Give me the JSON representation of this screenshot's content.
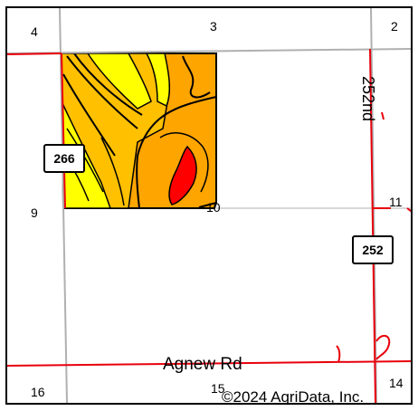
{
  "map": {
    "section_numbers": {
      "s4": "4",
      "s3": "3",
      "s2": "2",
      "s9": "9",
      "s10": "10",
      "s11": "11",
      "s16": "16",
      "s15": "15",
      "s14": "14"
    },
    "road_labels": {
      "vertical_road": "252nd",
      "horizontal_road": "Agnew Rd"
    },
    "route_shields": {
      "west_shield": "266",
      "east_shield": "252"
    },
    "copyright": "©2024 AgriData, Inc.",
    "colors": {
      "yellow": "#ffff00",
      "light_orange": "#ffc000",
      "orange": "#ffa500",
      "red": "#ff0000",
      "road_red": "#e8000b",
      "section_line_gray": "#b0b0b0"
    }
  }
}
